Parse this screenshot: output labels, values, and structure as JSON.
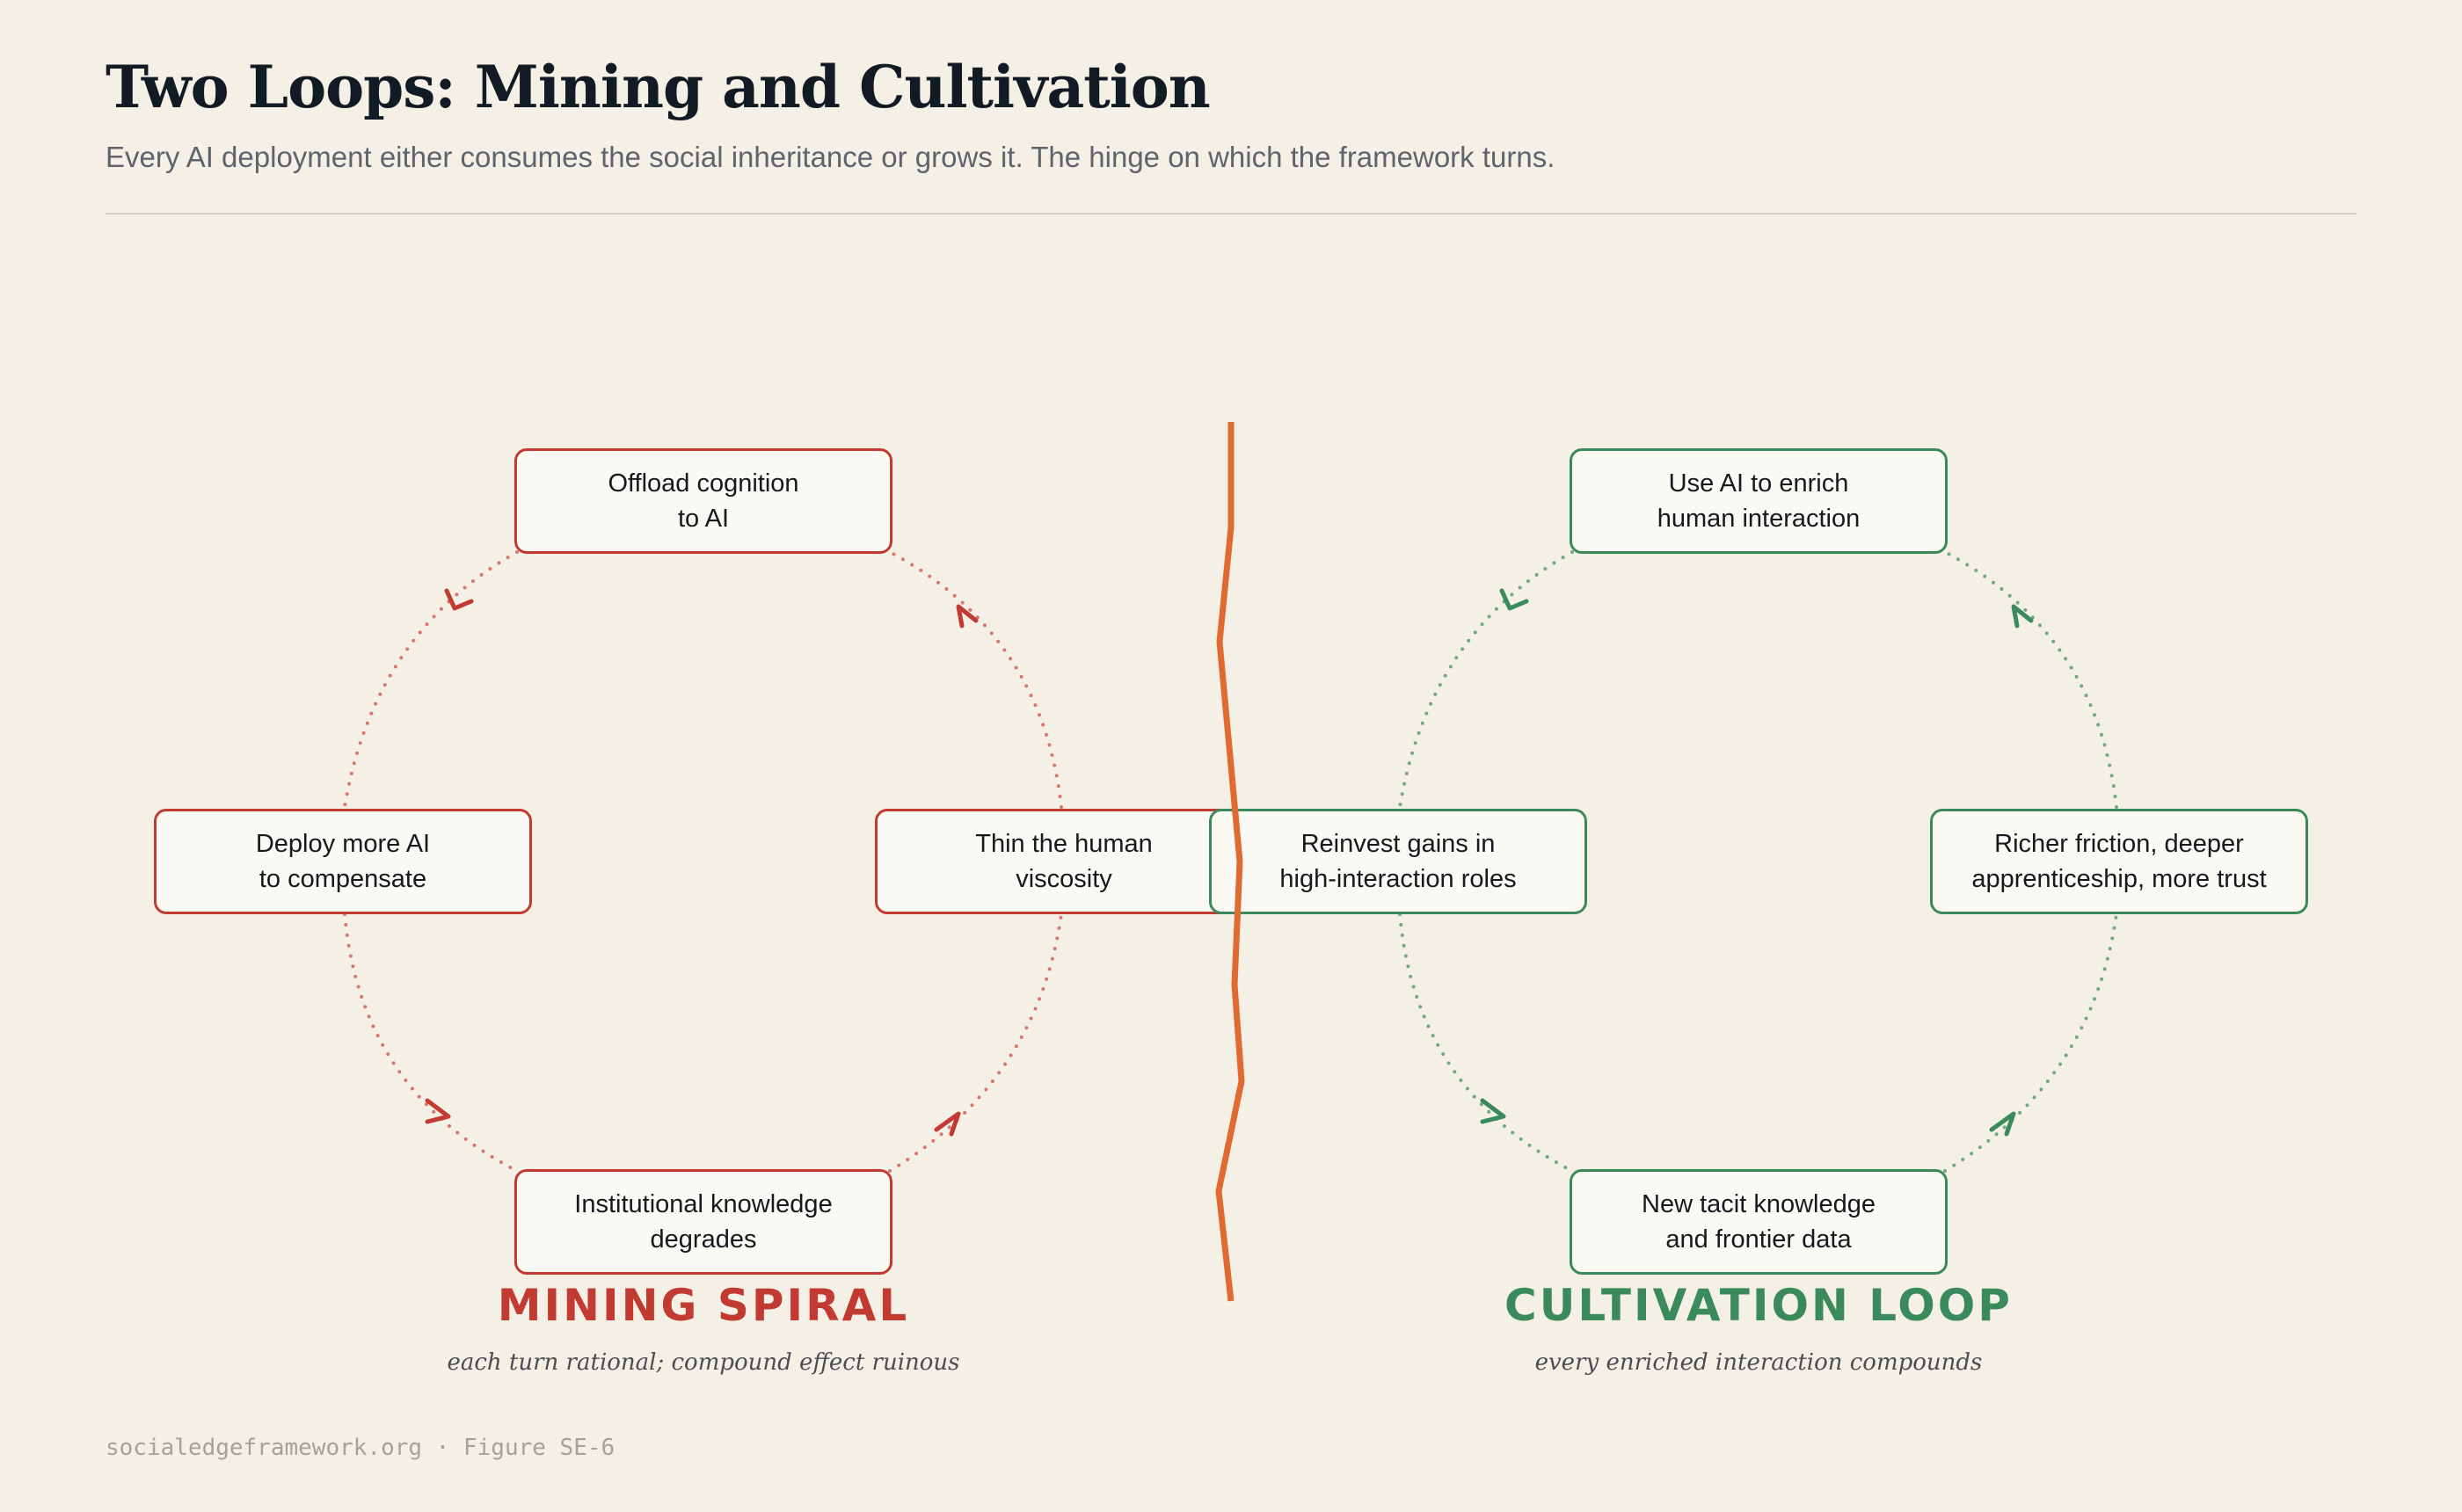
{
  "header": {
    "title": "Two Loops: Mining and Cultivation",
    "subtitle": "Every AI deployment either consumes the social inheritance or grows it. The hinge on which the framework turns."
  },
  "colors": {
    "mining": "#c23b32",
    "mining_connector": "#d9756b",
    "cultivation": "#3b8a5b",
    "cultivation_connector": "#6fa983",
    "divider": "#e06a32",
    "background": "#f5f0e6"
  },
  "mining": {
    "label": "MINING SPIRAL",
    "caption": "each turn rational; compound effect ruinous",
    "nodes": [
      {
        "line1": "Offload cognition",
        "line2": "to AI"
      },
      {
        "line1": "Thin the human",
        "line2": "viscosity"
      },
      {
        "line1": "Institutional knowledge",
        "line2": "degrades"
      },
      {
        "line1": "Deploy more AI",
        "line2": "to compensate"
      }
    ],
    "direction": "counter-clockwise"
  },
  "cultivation": {
    "label": "CULTIVATION LOOP",
    "caption": "every enriched interaction compounds",
    "nodes": [
      {
        "line1": "Use AI to enrich",
        "line2": "human interaction"
      },
      {
        "line1": "Richer friction, deeper",
        "line2": "apprenticeship, more trust"
      },
      {
        "line1": "New tacit knowledge",
        "line2": "and frontier data"
      },
      {
        "line1": "Reinvest gains in",
        "line2": "high-interaction roles"
      }
    ],
    "direction": "counter-clockwise"
  },
  "footer": {
    "text": "socialedgeframework.org · Figure SE-6"
  }
}
